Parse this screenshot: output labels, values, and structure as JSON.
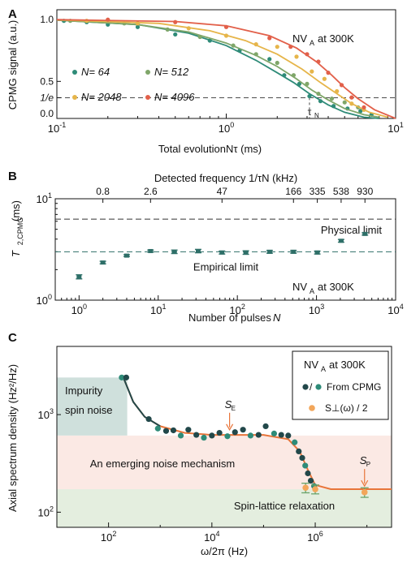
{
  "chart_data": [
    {
      "type": "scatter",
      "panel_label": "A",
      "annotation": "NV_A at 300K",
      "xlabel": "Total evolution Nτ (ms)",
      "ylabel": "CPMG signal (a.u.)",
      "xscale": "log",
      "xlim": [
        0.1,
        10
      ],
      "ylim": [
        0.2,
        1.08
      ],
      "x_ticks": [
        "10^-1",
        "10^0",
        "10^1"
      ],
      "y_ticks": [
        "1.0",
        "0.5",
        "1/e",
        "0.0"
      ],
      "hline": {
        "y": 0.3679,
        "label": "1/e"
      },
      "vline": {
        "x": 3.1,
        "label": "τN"
      },
      "series": [
        {
          "name": "N = 64",
          "color": "#2e8b78",
          "points": [
            [
              0.11,
              0.99
            ],
            [
              0.15,
              0.98
            ],
            [
              0.2,
              0.96
            ],
            [
              0.3,
              0.94
            ],
            [
              0.5,
              0.88
            ],
            [
              0.8,
              0.83
            ],
            [
              1.2,
              0.75
            ],
            [
              1.8,
              0.68
            ],
            [
              2.2,
              0.55
            ],
            [
              2.7,
              0.48
            ],
            [
              3.1,
              0.38
            ],
            [
              3.6,
              0.34
            ],
            [
              4.3,
              0.3
            ],
            [
              5.2,
              0.28
            ],
            [
              6.2,
              0.26
            ],
            [
              7.2,
              0.23
            ]
          ],
          "fit": [
            [
              0.1,
              0.995
            ],
            [
              0.3,
              0.96
            ],
            [
              0.6,
              0.89
            ],
            [
              1.0,
              0.79
            ],
            [
              1.5,
              0.67
            ],
            [
              2.0,
              0.57
            ],
            [
              2.5,
              0.49
            ],
            [
              3.1,
              0.4
            ],
            [
              4.0,
              0.31
            ],
            [
              5.0,
              0.25
            ],
            [
              6.5,
              0.21
            ],
            [
              8.0,
              0.2
            ]
          ]
        },
        {
          "name": "N = 512",
          "color": "#7fa669",
          "points": [
            [
              0.12,
              0.99
            ],
            [
              0.25,
              0.97
            ],
            [
              0.45,
              0.92
            ],
            [
              0.7,
              0.86
            ],
            [
              1.1,
              0.79
            ],
            [
              1.5,
              0.72
            ],
            [
              2.0,
              0.65
            ],
            [
              2.5,
              0.55
            ],
            [
              3.0,
              0.48
            ],
            [
              3.5,
              0.4
            ],
            [
              4.2,
              0.36
            ],
            [
              5.0,
              0.33
            ],
            [
              6.0,
              0.29
            ]
          ],
          "fit": [
            [
              0.1,
              0.995
            ],
            [
              0.3,
              0.96
            ],
            [
              0.6,
              0.9
            ],
            [
              1.0,
              0.81
            ],
            [
              1.5,
              0.71
            ],
            [
              2.0,
              0.62
            ],
            [
              2.6,
              0.52
            ],
            [
              3.2,
              0.43
            ],
            [
              4.0,
              0.35
            ],
            [
              5.0,
              0.28
            ],
            [
              6.5,
              0.23
            ],
            [
              8.0,
              0.21
            ]
          ]
        },
        {
          "name": "N = 2048",
          "color": "#e6b54a",
          "points": [
            [
              0.15,
              0.99
            ],
            [
              0.3,
              0.97
            ],
            [
              0.6,
              0.93
            ],
            [
              1.0,
              0.87
            ],
            [
              1.5,
              0.8
            ],
            [
              2.0,
              0.78
            ],
            [
              2.6,
              0.7
            ],
            [
              3.2,
              0.58
            ],
            [
              3.8,
              0.52
            ],
            [
              4.5,
              0.42
            ],
            [
              5.5,
              0.32
            ],
            [
              6.5,
              0.27
            ]
          ],
          "fit": [
            [
              0.1,
              0.998
            ],
            [
              0.4,
              0.97
            ],
            [
              0.8,
              0.91
            ],
            [
              1.3,
              0.83
            ],
            [
              2.0,
              0.72
            ],
            [
              2.8,
              0.6
            ],
            [
              3.6,
              0.49
            ],
            [
              4.5,
              0.4
            ],
            [
              5.5,
              0.32
            ],
            [
              7.0,
              0.25
            ],
            [
              9.0,
              0.21
            ]
          ]
        },
        {
          "name": "N = 4096",
          "color": "#e2604a",
          "points": [
            [
              0.2,
              1.0
            ],
            [
              0.5,
              0.98
            ],
            [
              1.0,
              0.94
            ],
            [
              1.8,
              0.85
            ],
            [
              2.4,
              0.78
            ],
            [
              3.0,
              0.72
            ],
            [
              3.5,
              0.66
            ],
            [
              4.0,
              0.57
            ],
            [
              4.8,
              0.47
            ],
            [
              5.5,
              0.37
            ],
            [
              6.5,
              0.29
            ]
          ],
          "fit": [
            [
              0.1,
              1.0
            ],
            [
              0.5,
              0.985
            ],
            [
              1.0,
              0.95
            ],
            [
              1.8,
              0.87
            ],
            [
              2.6,
              0.77
            ],
            [
              3.4,
              0.66
            ],
            [
              4.2,
              0.55
            ],
            [
              5.0,
              0.45
            ],
            [
              6.0,
              0.36
            ],
            [
              7.5,
              0.27
            ],
            [
              10.0,
              0.2
            ]
          ]
        }
      ]
    },
    {
      "type": "scatter",
      "panel_label": "B",
      "annotation": "NV_A at 300K",
      "xlabel": "Number of pulses N",
      "ylabel": "T2,CPMG (ms)",
      "top_label": "Detected frequency 1/τN (kHz)",
      "xscale": "log",
      "yscale": "log",
      "xlim": [
        0.5,
        10000
      ],
      "ylim": [
        1,
        10
      ],
      "x_ticks": [
        "10^0",
        "10^1",
        "10^2",
        "10^3",
        "10^4"
      ],
      "y_ticks": [
        "10^0",
        "10^1"
      ],
      "top_ticks": [
        {
          "x": 2,
          "label": "0.8"
        },
        {
          "x": 8,
          "label": "2.6"
        },
        {
          "x": 64,
          "label": "47"
        },
        {
          "x": 512,
          "label": "166"
        },
        {
          "x": 1024,
          "label": "335"
        },
        {
          "x": 2048,
          "label": "538"
        },
        {
          "x": 4096,
          "label": "930"
        }
      ],
      "hlines": [
        {
          "y": 6.3,
          "label": "Physical limit"
        },
        {
          "y": 3.0,
          "label": "Empirical limit"
        }
      ],
      "points": [
        {
          "x": 1,
          "y": 1.7,
          "err": 0.08
        },
        {
          "x": 2,
          "y": 2.35,
          "err": 0.07
        },
        {
          "x": 4,
          "y": 2.75,
          "err": 0.06
        },
        {
          "x": 8,
          "y": 3.05,
          "err": 0.07
        },
        {
          "x": 16,
          "y": 3.0,
          "err": 0.12
        },
        {
          "x": 32,
          "y": 3.05,
          "err": 0.12
        },
        {
          "x": 64,
          "y": 2.95,
          "err": 0.1
        },
        {
          "x": 128,
          "y": 2.95,
          "err": 0.12
        },
        {
          "x": 256,
          "y": 3.0,
          "err": 0.1
        },
        {
          "x": 512,
          "y": 3.0,
          "err": 0.1
        },
        {
          "x": 1024,
          "y": 2.95,
          "err": 0.1
        },
        {
          "x": 2048,
          "y": 3.85,
          "err": 0.12
        },
        {
          "x": 4096,
          "y": 4.5,
          "err": 0.12
        }
      ],
      "color": "#2e6f68"
    },
    {
      "type": "scatter",
      "panel_label": "C",
      "xlabel": "ω/2π (Hz)",
      "ylabel": "Axial spectrum density (Hz²/Hz)",
      "xscale": "log",
      "yscale": "log",
      "xlim": [
        10,
        30000000
      ],
      "ylim": [
        70,
        5000
      ],
      "x_ticks": [
        "10^2",
        "10^4",
        "10^6"
      ],
      "y_ticks": [
        "10^2",
        "10^3"
      ],
      "legend": {
        "title": "NV_A at 300K",
        "entries": [
          "From CPMG",
          "S⊥(ω) / 2"
        ]
      },
      "regions": [
        {
          "label": "Impurity spin noise",
          "color": "#cfe0dc"
        },
        {
          "label": "An emerging noise mechanism",
          "color": "#fbe9e4"
        },
        {
          "label": "Spin-lattice relaxation",
          "color": "#e4eedf"
        }
      ],
      "arrows": [
        {
          "label": "SE",
          "x": 22000,
          "y": 660
        },
        {
          "label": "SP",
          "x": 9000000,
          "y": 175
        }
      ],
      "fit_curve": [
        [
          200,
          2300
        ],
        [
          300,
          1350
        ],
        [
          500,
          950
        ],
        [
          1000,
          760
        ],
        [
          3000,
          650
        ],
        [
          10000,
          620
        ],
        [
          100000,
          620
        ],
        [
          300000,
          560
        ],
        [
          500000,
          420
        ],
        [
          700000,
          280
        ],
        [
          1000000,
          190
        ],
        [
          2000000,
          172
        ],
        [
          30000000,
          172
        ]
      ],
      "cpmg_points": [
        [
          180,
          2400
        ],
        [
          220,
          2400
        ],
        [
          600,
          900
        ],
        [
          900,
          720
        ],
        [
          1300,
          680
        ],
        [
          1800,
          690
        ],
        [
          2500,
          610
        ],
        [
          3500,
          700
        ],
        [
          5000,
          620
        ],
        [
          7000,
          580
        ],
        [
          10000,
          610
        ],
        [
          14000,
          650
        ],
        [
          20000,
          600
        ],
        [
          28000,
          660
        ],
        [
          40000,
          700
        ],
        [
          56000,
          610
        ],
        [
          80000,
          620
        ],
        [
          110000,
          760
        ],
        [
          160000,
          640
        ],
        [
          220000,
          620
        ],
        [
          300000,
          610
        ],
        [
          400000,
          520
        ],
        [
          480000,
          420
        ],
        [
          560000,
          360
        ],
        [
          640000,
          300
        ],
        [
          720000,
          250
        ],
        [
          820000,
          210
        ],
        [
          950000,
          185
        ]
      ],
      "spin_lattice_points": [
        {
          "x": 650000,
          "y": 178,
          "err": 20
        },
        {
          "x": 1000000,
          "y": 172,
          "err": 18
        },
        {
          "x": 9000000,
          "y": 160,
          "err": 18
        }
      ],
      "colors": {
        "cpmg_dark": "#22484a",
        "cpmg_teal": "#2e8b78",
        "spin": "#f2a65a",
        "fit": "#e8753a",
        "fit_left": "#22484a"
      }
    }
  ]
}
